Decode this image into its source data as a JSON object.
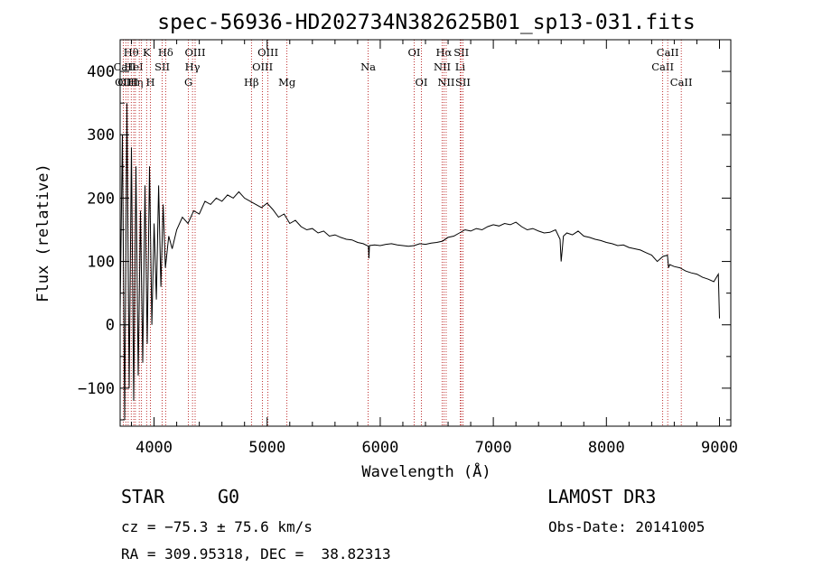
{
  "chart_data": {
    "type": "line",
    "title": "spec-56936-HD202734N382625B01_sp13-031.fits",
    "xlabel": "Wavelength (Å)",
    "ylabel": "Flux (relative)",
    "xlim": [
      3700,
      9100
    ],
    "ylim": [
      -160,
      450
    ],
    "xticks": [
      4000,
      5000,
      6000,
      7000,
      8000,
      9000
    ],
    "xtick_labels": [
      "4000",
      "5000",
      "6000",
      "7000",
      "8000",
      "9000"
    ],
    "yticks": [
      -100,
      0,
      100,
      200,
      300,
      400
    ],
    "ytick_labels": [
      "−100",
      "0",
      "100",
      "200",
      "300",
      "400"
    ],
    "line_color": "#000000",
    "marker_color": "#b00000",
    "series": [
      {
        "name": "flux",
        "x": [
          3700,
          3720,
          3740,
          3760,
          3780,
          3800,
          3820,
          3840,
          3860,
          3880,
          3900,
          3920,
          3940,
          3960,
          3980,
          4000,
          4020,
          4040,
          4060,
          4080,
          4100,
          4130,
          4160,
          4200,
          4250,
          4300,
          4350,
          4400,
          4450,
          4500,
          4550,
          4600,
          4650,
          4700,
          4750,
          4800,
          4850,
          4900,
          4950,
          5000,
          5050,
          5100,
          5150,
          5200,
          5250,
          5300,
          5350,
          5400,
          5450,
          5500,
          5550,
          5600,
          5650,
          5700,
          5750,
          5800,
          5850,
          5895,
          5900,
          5905,
          5950,
          6000,
          6050,
          6100,
          6150,
          6200,
          6250,
          6300,
          6350,
          6400,
          6450,
          6500,
          6550,
          6600,
          6650,
          6700,
          6750,
          6800,
          6850,
          6900,
          6950,
          7000,
          7050,
          7100,
          7150,
          7200,
          7250,
          7300,
          7350,
          7400,
          7450,
          7500,
          7550,
          7590,
          7600,
          7610,
          7620,
          7650,
          7700,
          7750,
          7800,
          7850,
          7900,
          7950,
          8000,
          8050,
          8100,
          8150,
          8200,
          8250,
          8300,
          8350,
          8400,
          8450,
          8500,
          8540,
          8550,
          8560,
          8600,
          8650,
          8700,
          8750,
          8800,
          8850,
          8900,
          8950,
          8990,
          9000
        ],
        "y": [
          20,
          300,
          -150,
          350,
          -100,
          280,
          -120,
          250,
          -80,
          180,
          -60,
          220,
          -30,
          250,
          0,
          160,
          40,
          220,
          60,
          190,
          90,
          140,
          120,
          150,
          170,
          160,
          180,
          175,
          195,
          190,
          200,
          195,
          205,
          200,
          210,
          200,
          195,
          190,
          185,
          192,
          182,
          170,
          175,
          160,
          165,
          155,
          150,
          152,
          145,
          148,
          140,
          142,
          138,
          135,
          134,
          130,
          128,
          124,
          105,
          125,
          126,
          125,
          127,
          128,
          126,
          125,
          124,
          125,
          128,
          127,
          129,
          130,
          132,
          138,
          140,
          145,
          150,
          148,
          152,
          150,
          155,
          158,
          156,
          160,
          158,
          162,
          155,
          150,
          152,
          148,
          145,
          146,
          150,
          135,
          100,
          120,
          140,
          145,
          142,
          148,
          140,
          138,
          135,
          133,
          130,
          128,
          125,
          126,
          122,
          120,
          118,
          114,
          110,
          100,
          108,
          110,
          90,
          95,
          92,
          90,
          85,
          82,
          80,
          75,
          72,
          68,
          80,
          10
        ]
      }
    ],
    "line_markers": {
      "lines": [
        {
          "w": 3727,
          "label": "OII",
          "row": 3
        },
        {
          "w": 3750,
          "label": "",
          "row": 0
        },
        {
          "w": 3771,
          "label": "",
          "row": 0
        },
        {
          "w": 3798,
          "label": "Hθ",
          "row": 1
        },
        {
          "w": 3820,
          "label": "HeI",
          "row": 2
        },
        {
          "w": 3835,
          "label": "Hη",
          "row": 3
        },
        {
          "w": 3869,
          "label": "",
          "row": 0
        },
        {
          "w": 3889,
          "label": "",
          "row": 0
        },
        {
          "w": 3934,
          "label": "K",
          "row": 1
        },
        {
          "w": 3968,
          "label": "H",
          "row": 3
        },
        {
          "w": 4072,
          "label": "SII",
          "row": 2
        },
        {
          "w": 4102,
          "label": "Hδ",
          "row": 1
        },
        {
          "w": 4304,
          "label": "G",
          "row": 3
        },
        {
          "w": 4340,
          "label": "Hγ",
          "row": 2
        },
        {
          "w": 4363,
          "label": "OIII",
          "row": 1
        },
        {
          "w": 4861,
          "label": "Hβ",
          "row": 3
        },
        {
          "w": 4959,
          "label": "OIII",
          "row": 2
        },
        {
          "w": 5007,
          "label": "OIII",
          "row": 1
        },
        {
          "w": 5175,
          "label": "Mg",
          "row": 3
        },
        {
          "w": 5893,
          "label": "Na",
          "row": 2
        },
        {
          "w": 6300,
          "label": "OI",
          "row": 1
        },
        {
          "w": 6364,
          "label": "OI",
          "row": 3
        },
        {
          "w": 6548,
          "label": "NII",
          "row": 2
        },
        {
          "w": 6563,
          "label": "Hα",
          "row": 1
        },
        {
          "w": 6583,
          "label": "NII",
          "row": 3
        },
        {
          "w": 6707,
          "label": "Li",
          "row": 2
        },
        {
          "w": 6717,
          "label": "SII",
          "row": 1
        },
        {
          "w": 6731,
          "label": "SII",
          "row": 3
        },
        {
          "w": 8498,
          "label": "CaII",
          "row": 2
        },
        {
          "w": 8542,
          "label": "CaII",
          "row": 1
        },
        {
          "w": 8662,
          "label": "CaII",
          "row": 3
        }
      ],
      "top_labels": [
        {
          "text": "CaII",
          "w": 3740,
          "row": 2
        },
        {
          "text": "OIII",
          "w": 3770,
          "row": 3
        }
      ]
    }
  },
  "info": {
    "class": "STAR",
    "subclass": "G0",
    "survey": "LAMOST DR3",
    "cz": "cz = −75.3 ± 75.6 km/s",
    "obs_date": "Obs-Date: 20141005",
    "coords": "RA = 309.95318, DEC =  38.82313"
  }
}
